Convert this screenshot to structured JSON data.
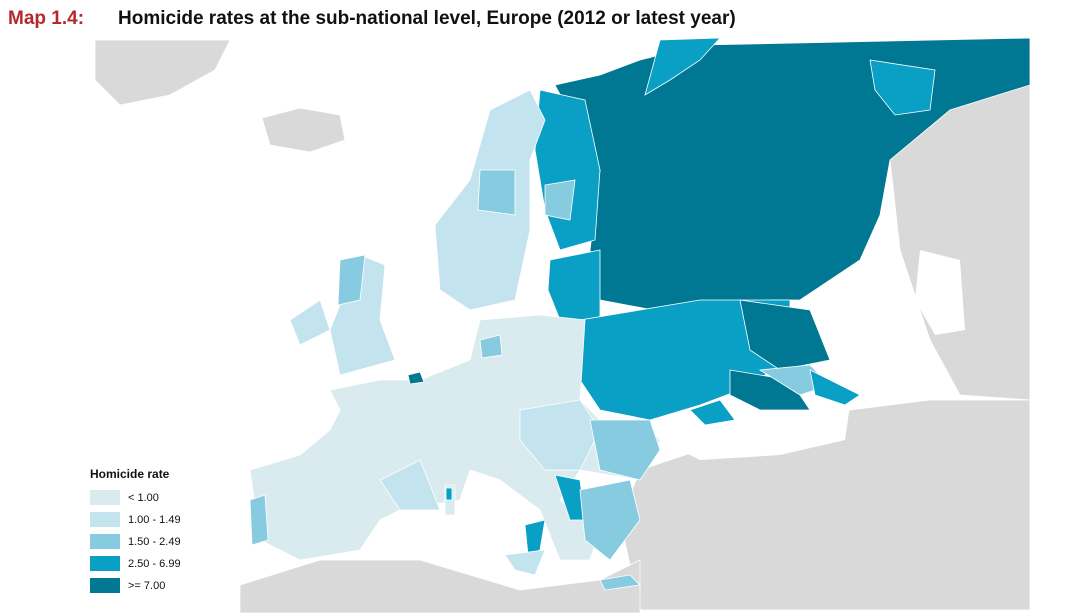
{
  "title": {
    "label": "Map 1.4:",
    "text": "Homicide rates at the sub-national level, Europe (2012 or latest year)"
  },
  "legend": {
    "title": "Homicide rate",
    "items": [
      {
        "label": "< 1.00",
        "color": "#d9ebee"
      },
      {
        "label": "1.00 - 1.49",
        "color": "#c3e3ee"
      },
      {
        "label": "1.50 - 2.49",
        "color": "#86cbe0"
      },
      {
        "label": "2.50 - 6.99",
        "color": "#0aa0c6"
      },
      {
        "label": ">= 7.00",
        "color": "#007894"
      }
    ]
  }
}
